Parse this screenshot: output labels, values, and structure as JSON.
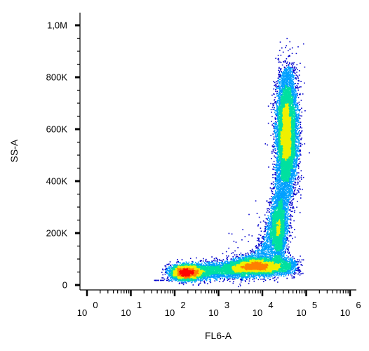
{
  "chart_data": {
    "type": "scatter",
    "subtype": "flow-cytometry density dot plot",
    "xlabel": "FL6-A",
    "ylabel": "SS-A",
    "x_scale": "log",
    "xlim": [
      1,
      1000000
    ],
    "x_ticks": [
      {
        "base": "10",
        "exp": "0"
      },
      {
        "base": "10",
        "exp": "1"
      },
      {
        "base": "10",
        "exp": "2"
      },
      {
        "base": "10",
        "exp": "3"
      },
      {
        "base": "10",
        "exp": "4"
      },
      {
        "base": "10",
        "exp": "5"
      },
      {
        "base": "10",
        "exp": "6"
      }
    ],
    "ylim": [
      0,
      1000000
    ],
    "y_ticks": [
      {
        "value": 0,
        "label": "0"
      },
      {
        "value": 200000,
        "label": "200K"
      },
      {
        "value": 400000,
        "label": "400K"
      },
      {
        "value": 600000,
        "label": "600K"
      },
      {
        "value": 800000,
        "label": "800K"
      },
      {
        "value": 1000000,
        "label": "1,0M"
      }
    ],
    "grid": false,
    "legend": "none",
    "color_scale": [
      "#0000cc",
      "#00a0ff",
      "#00e0a0",
      "#f0f000",
      "#ff8000",
      "#ff0000"
    ],
    "populations": [
      {
        "log10_x": 2.25,
        "y": 50000,
        "density": "highest"
      },
      {
        "log10_x": 3.9,
        "y": 75000,
        "density": "high"
      },
      {
        "log10_x": 4.55,
        "y": 580000,
        "density": "high"
      },
      {
        "log10_x": 4.35,
        "y": 230000,
        "density": "medium"
      }
    ]
  }
}
